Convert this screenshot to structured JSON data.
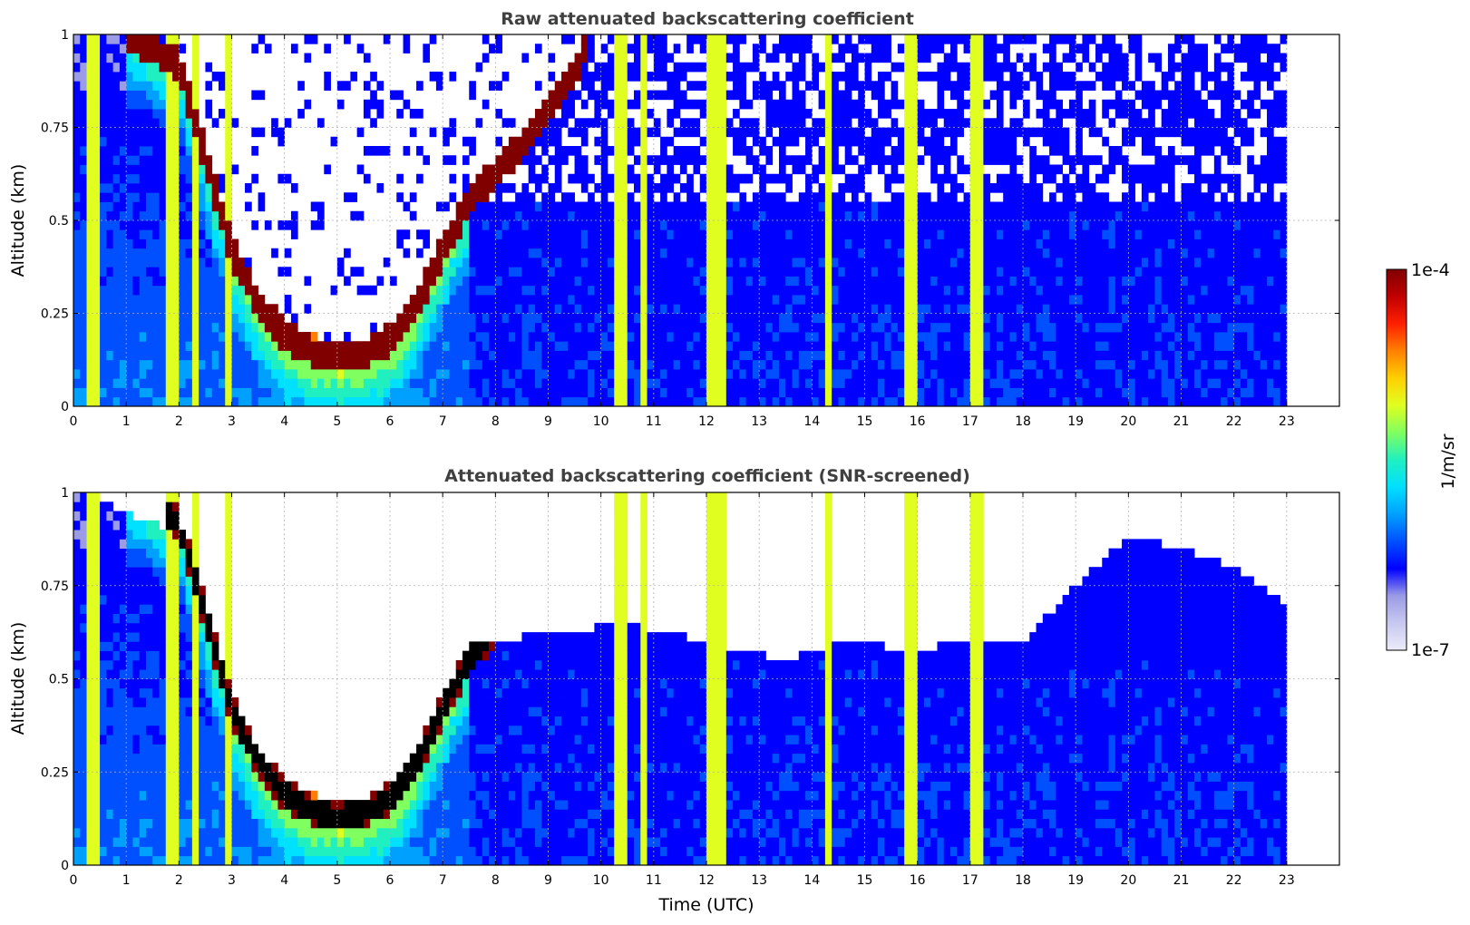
{
  "chart_data": [
    {
      "type": "heatmap",
      "title": "Raw attenuated backscattering coefficient",
      "xlabel": "",
      "ylabel": "Altitude (km)",
      "xlim": [
        0,
        24
      ],
      "ylim": [
        0,
        1
      ],
      "xticks": [
        "0",
        "1",
        "2",
        "3",
        "4",
        "5",
        "6",
        "7",
        "8",
        "9",
        "10",
        "11",
        "12",
        "13",
        "14",
        "15",
        "16",
        "17",
        "18",
        "19",
        "20",
        "21",
        "22",
        "23"
      ],
      "yticks": [
        "0",
        "0.25",
        "0.5",
        "0.75",
        "1"
      ],
      "grid": true,
      "data_end_time": 23,
      "colorscale": "jet",
      "log_scale": true,
      "features": {
        "cloud_layer_base_km": [
          [
            1.0,
            1.0
          ],
          [
            2.0,
            0.92
          ],
          [
            2.4,
            0.72
          ],
          [
            3.0,
            0.42
          ],
          [
            3.5,
            0.28
          ],
          [
            4.0,
            0.19
          ],
          [
            4.5,
            0.15
          ],
          [
            5.0,
            0.13
          ],
          [
            5.5,
            0.14
          ],
          [
            6.0,
            0.18
          ],
          [
            6.5,
            0.27
          ],
          [
            7.0,
            0.42
          ],
          [
            7.5,
            0.55
          ],
          [
            8.0,
            0.63
          ],
          [
            8.5,
            0.7
          ],
          [
            9.0,
            0.8
          ],
          [
            9.5,
            0.9
          ],
          [
            9.8,
            1.0
          ]
        ],
        "vertical_streaks_utc": [
          0.3,
          0.45,
          1.8,
          1.95,
          2.35,
          2.9,
          10.35,
          10.45,
          10.8,
          12.05,
          12.25,
          14.35,
          15.85,
          15.95,
          17.05,
          17.2
        ]
      }
    },
    {
      "type": "heatmap",
      "title": "Attenuated backscattering coefficient (SNR-screened)",
      "xlabel": "Time (UTC)",
      "ylabel": "Altitude (km)",
      "xlim": [
        0,
        24
      ],
      "ylim": [
        0,
        1
      ],
      "xticks": [
        "0",
        "1",
        "2",
        "3",
        "4",
        "5",
        "6",
        "7",
        "8",
        "9",
        "10",
        "11",
        "12",
        "13",
        "14",
        "15",
        "16",
        "17",
        "18",
        "19",
        "20",
        "21",
        "22",
        "23"
      ],
      "yticks": [
        "0",
        "0.25",
        "0.5",
        "0.75",
        "1"
      ],
      "grid": true,
      "data_end_time": 23,
      "colorscale": "jet",
      "log_scale": true,
      "features": {
        "screened_top_km": [
          [
            0.0,
            1.0
          ],
          [
            7.5,
            0.6
          ],
          [
            9.0,
            0.62
          ],
          [
            10.5,
            0.65
          ],
          [
            12.0,
            0.6
          ],
          [
            13.5,
            0.55
          ],
          [
            14.5,
            0.6
          ],
          [
            16.0,
            0.58
          ],
          [
            17.0,
            0.6
          ],
          [
            18.0,
            0.6
          ],
          [
            19.0,
            0.75
          ],
          [
            20.0,
            0.88
          ],
          [
            21.0,
            0.85
          ],
          [
            22.0,
            0.8
          ],
          [
            23.0,
            0.7
          ]
        ]
      }
    }
  ],
  "colorbar": {
    "label": "1/m/sr",
    "max_label": "1e-4",
    "min_label": "1e-7",
    "colors": [
      "#ececfa",
      "#c8c8f0",
      "#9b9be6",
      "#0000ff",
      "#0050ff",
      "#00a0ff",
      "#00e0ff",
      "#20f0c0",
      "#80ff60",
      "#e0ff20",
      "#ffd000",
      "#ff8000",
      "#ff2000",
      "#c00000",
      "#800000"
    ]
  }
}
